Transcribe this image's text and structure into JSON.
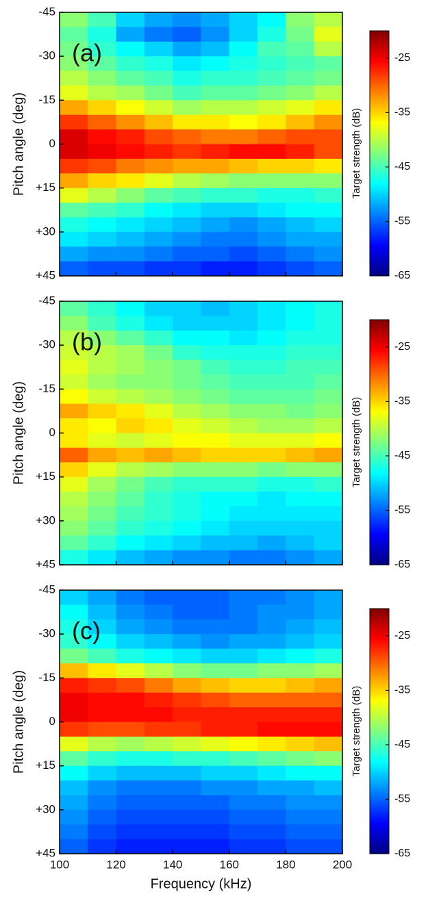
{
  "chart_data": [
    {
      "type": "heatmap",
      "label": "(a)",
      "ylabel": "Pitch angle (deg)",
      "colorbar_label": "Target strength (dB)",
      "colormap": "jet",
      "y_inverted": true,
      "show_xtick_labels": false,
      "x": [
        105,
        115,
        125,
        135,
        145,
        155,
        165,
        175,
        185,
        195
      ],
      "y": [
        -42.5,
        -37.5,
        -32.5,
        -27.5,
        -22.5,
        -17.5,
        -12.5,
        -7.5,
        -2.5,
        2.5,
        7.5,
        12.5,
        17.5,
        22.5,
        27.5,
        32.5,
        37.5,
        42.5
      ],
      "z": [
        [
          -42,
          -45,
          -50,
          -52,
          -53,
          -52,
          -50,
          -48,
          -42,
          -40
        ],
        [
          -44,
          -47,
          -52,
          -54,
          -55,
          -53,
          -50,
          -47,
          -43,
          -38
        ],
        [
          -43,
          -46,
          -48,
          -50,
          -52,
          -51,
          -48,
          -45,
          -44,
          -40
        ],
        [
          -42,
          -44,
          -46,
          -47,
          -49,
          -48,
          -47,
          -46,
          -45,
          -44
        ],
        [
          -40,
          -42,
          -44,
          -45,
          -47,
          -46,
          -46,
          -45,
          -44,
          -43
        ],
        [
          -38,
          -40,
          -41,
          -43,
          -45,
          -44,
          -44,
          -43,
          -42,
          -40
        ],
        [
          -33,
          -35,
          -37,
          -39,
          -41,
          -40,
          -40,
          -39,
          -38,
          -36
        ],
        [
          -28,
          -30,
          -32,
          -34,
          -36,
          -36,
          -37,
          -36,
          -34,
          -32
        ],
        [
          -24,
          -26,
          -27,
          -29,
          -30,
          -31,
          -31,
          -30,
          -29,
          -29
        ],
        [
          -24,
          -25,
          -26,
          -27,
          -28,
          -27,
          -26,
          -26,
          -27,
          -29
        ],
        [
          -28,
          -29,
          -31,
          -32,
          -33,
          -33,
          -34,
          -35,
          -35,
          -36
        ],
        [
          -33,
          -35,
          -36,
          -38,
          -40,
          -41,
          -42,
          -42,
          -42,
          -42
        ],
        [
          -38,
          -40,
          -42,
          -44,
          -45,
          -46,
          -46,
          -47,
          -47,
          -46
        ],
        [
          -44,
          -45,
          -46,
          -48,
          -49,
          -50,
          -50,
          -49,
          -48,
          -48
        ],
        [
          -47,
          -48,
          -49,
          -50,
          -51,
          -52,
          -53,
          -52,
          -51,
          -50
        ],
        [
          -49,
          -50,
          -51,
          -52,
          -53,
          -54,
          -54,
          -53,
          -52,
          -52
        ],
        [
          -52,
          -53,
          -53,
          -54,
          -55,
          -55,
          -56,
          -55,
          -54,
          -53
        ],
        [
          -55,
          -56,
          -56,
          -57,
          -57,
          -58,
          -58,
          -57,
          -56,
          -55
        ]
      ],
      "xlim": [
        100,
        200
      ],
      "xticks": [
        100,
        120,
        140,
        160,
        180,
        200
      ],
      "ylim": [
        -45,
        45
      ],
      "yticks": [
        -45,
        -30,
        -15,
        0,
        {
          "value": 15,
          "label": "+15"
        },
        {
          "value": 30,
          "label": "+30"
        },
        {
          "value": 45,
          "label": "+45"
        }
      ],
      "zlim": [
        -65,
        -20
      ],
      "zticks": [
        -65,
        -55,
        -45,
        -35,
        -25
      ]
    },
    {
      "type": "heatmap",
      "label": "(b)",
      "ylabel": "Pitch angle (deg)",
      "colorbar_label": "Target strength (dB)",
      "colormap": "jet",
      "y_inverted": true,
      "show_xtick_labels": false,
      "x": [
        105,
        115,
        125,
        135,
        145,
        155,
        165,
        175,
        185,
        195
      ],
      "y": [
        -42.5,
        -37.5,
        -32.5,
        -27.5,
        -22.5,
        -17.5,
        -12.5,
        -7.5,
        -2.5,
        2.5,
        7.5,
        12.5,
        17.5,
        22.5,
        27.5,
        32.5,
        37.5,
        42.5
      ],
      "z": [
        [
          -44,
          -46,
          -48,
          -50,
          -50,
          -51,
          -50,
          -49,
          -48,
          -47
        ],
        [
          -42,
          -45,
          -47,
          -49,
          -50,
          -50,
          -50,
          -49,
          -48,
          -47
        ],
        [
          -40,
          -42,
          -44,
          -46,
          -48,
          -48,
          -49,
          -48,
          -47,
          -47
        ],
        [
          -39,
          -40,
          -41,
          -43,
          -46,
          -47,
          -47,
          -47,
          -46,
          -46
        ],
        [
          -38,
          -40,
          -41,
          -42,
          -43,
          -45,
          -46,
          -46,
          -45,
          -45
        ],
        [
          -39,
          -41,
          -42,
          -42,
          -43,
          -44,
          -45,
          -45,
          -45,
          -44
        ],
        [
          -37,
          -39,
          -40,
          -41,
          -42,
          -43,
          -44,
          -44,
          -44,
          -43
        ],
        [
          -33,
          -35,
          -36,
          -38,
          -40,
          -41,
          -42,
          -42,
          -43,
          -42
        ],
        [
          -36,
          -37,
          -35,
          -36,
          -38,
          -39,
          -40,
          -41,
          -41,
          -40
        ],
        [
          -36,
          -38,
          -39,
          -38,
          -37,
          -37,
          -38,
          -38,
          -38,
          -37
        ],
        [
          -30,
          -33,
          -34,
          -33,
          -34,
          -35,
          -35,
          -35,
          -34,
          -33
        ],
        [
          -35,
          -38,
          -40,
          -41,
          -42,
          -42,
          -42,
          -43,
          -42,
          -42
        ],
        [
          -38,
          -41,
          -43,
          -45,
          -46,
          -46,
          -46,
          -47,
          -47,
          -46
        ],
        [
          -40,
          -42,
          -44,
          -46,
          -47,
          -48,
          -48,
          -49,
          -48,
          -48
        ],
        [
          -41,
          -43,
          -45,
          -46,
          -47,
          -48,
          -49,
          -49,
          -49,
          -49
        ],
        [
          -42,
          -44,
          -46,
          -47,
          -48,
          -49,
          -50,
          -50,
          -50,
          -50
        ],
        [
          -44,
          -46,
          -48,
          -49,
          -50,
          -51,
          -51,
          -52,
          -51,
          -50
        ],
        [
          -47,
          -49,
          -51,
          -52,
          -53,
          -53,
          -54,
          -54,
          -53,
          -52
        ]
      ],
      "xlim": [
        100,
        200
      ],
      "xticks": [
        100,
        120,
        140,
        160,
        180,
        200
      ],
      "ylim": [
        -45,
        45
      ],
      "yticks": [
        -45,
        -30,
        -15,
        0,
        {
          "value": 15,
          "label": "+15"
        },
        {
          "value": 30,
          "label": "+30"
        },
        {
          "value": 45,
          "label": "+45"
        }
      ],
      "zlim": [
        -65,
        -20
      ],
      "zticks": [
        -65,
        -55,
        -45,
        -35,
        -25
      ]
    },
    {
      "type": "heatmap",
      "label": "(c)",
      "ylabel": "Pitch angle (deg)",
      "xlabel": "Frequency (kHz)",
      "colorbar_label": "Target strength (dB)",
      "colormap": "jet",
      "y_inverted": true,
      "show_xtick_labels": true,
      "x": [
        105,
        115,
        125,
        135,
        145,
        155,
        165,
        175,
        185,
        195
      ],
      "y": [
        -42.5,
        -37.5,
        -32.5,
        -27.5,
        -22.5,
        -17.5,
        -12.5,
        -7.5,
        -2.5,
        2.5,
        7.5,
        12.5,
        17.5,
        22.5,
        27.5,
        32.5,
        37.5,
        42.5
      ],
      "z": [
        [
          -50,
          -52,
          -54,
          -55,
          -55,
          -55,
          -54,
          -54,
          -53,
          -52
        ],
        [
          -48,
          -51,
          -53,
          -54,
          -55,
          -55,
          -54,
          -53,
          -53,
          -52
        ],
        [
          -47,
          -50,
          -52,
          -53,
          -54,
          -54,
          -54,
          -53,
          -52,
          -51
        ],
        [
          -46,
          -48,
          -50,
          -51,
          -52,
          -53,
          -52,
          -52,
          -51,
          -50
        ],
        [
          -43,
          -45,
          -47,
          -48,
          -49,
          -50,
          -50,
          -49,
          -48,
          -47
        ],
        [
          -34,
          -36,
          -38,
          -40,
          -42,
          -43,
          -43,
          -42,
          -42,
          -41
        ],
        [
          -27,
          -28,
          -29,
          -31,
          -33,
          -34,
          -35,
          -35,
          -34,
          -33
        ],
        [
          -25,
          -26,
          -26,
          -27,
          -28,
          -29,
          -30,
          -30,
          -30,
          -30
        ],
        [
          -25,
          -26,
          -26,
          -26,
          -27,
          -27,
          -27,
          -27,
          -27,
          -27
        ],
        [
          -28,
          -29,
          -29,
          -28,
          -28,
          -27,
          -27,
          -26,
          -26,
          -26
        ],
        [
          -38,
          -40,
          -41,
          -40,
          -39,
          -38,
          -37,
          -36,
          -35,
          -34
        ],
        [
          -44,
          -46,
          -47,
          -47,
          -46,
          -46,
          -45,
          -44,
          -43,
          -42
        ],
        [
          -48,
          -50,
          -51,
          -51,
          -51,
          -50,
          -50,
          -49,
          -48,
          -48
        ],
        [
          -51,
          -53,
          -54,
          -54,
          -54,
          -53,
          -53,
          -52,
          -52,
          -51
        ],
        [
          -52,
          -54,
          -55,
          -55,
          -55,
          -55,
          -54,
          -54,
          -53,
          -53
        ],
        [
          -53,
          -55,
          -56,
          -56,
          -56,
          -56,
          -55,
          -55,
          -54,
          -54
        ],
        [
          -54,
          -56,
          -57,
          -57,
          -57,
          -57,
          -56,
          -56,
          -55,
          -55
        ],
        [
          -55,
          -57,
          -58,
          -58,
          -58,
          -58,
          -57,
          -57,
          -56,
          -56
        ]
      ],
      "xlim": [
        100,
        200
      ],
      "xticks": [
        100,
        120,
        140,
        160,
        180,
        200
      ],
      "ylim": [
        -45,
        45
      ],
      "yticks": [
        -45,
        -30,
        -15,
        0,
        {
          "value": 15,
          "label": "+15"
        },
        {
          "value": 30,
          "label": "+30"
        },
        {
          "value": 45,
          "label": "+45"
        }
      ],
      "zlim": [
        -65,
        -20
      ],
      "zticks": [
        -65,
        -55,
        -45,
        -35,
        -25
      ]
    }
  ]
}
